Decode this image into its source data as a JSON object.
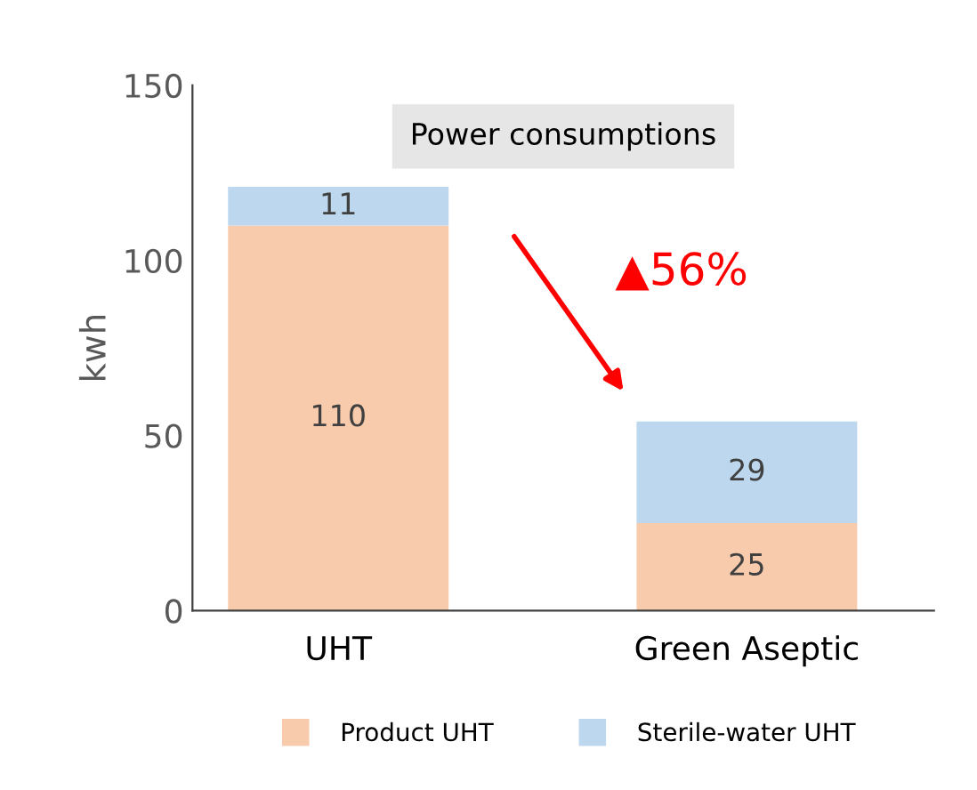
{
  "chart_data": {
    "type": "bar",
    "title": "Power consumptions",
    "ylabel": "kwh",
    "categories": [
      "UHT",
      "Green Aseptic"
    ],
    "stacked": true,
    "data_labels": true,
    "series": [
      {
        "name": "Product UHT",
        "color": "#f8cbad",
        "values": [
          110,
          25
        ]
      },
      {
        "name": "Sterile-water UHT",
        "color": "#bdd7ee",
        "values": [
          11,
          29
        ]
      }
    ],
    "ylim": [
      0,
      150
    ],
    "yticks": [
      0,
      50,
      100,
      150
    ],
    "grid": false,
    "legend": "bottom",
    "annotations": [
      "▲56%"
    ]
  }
}
